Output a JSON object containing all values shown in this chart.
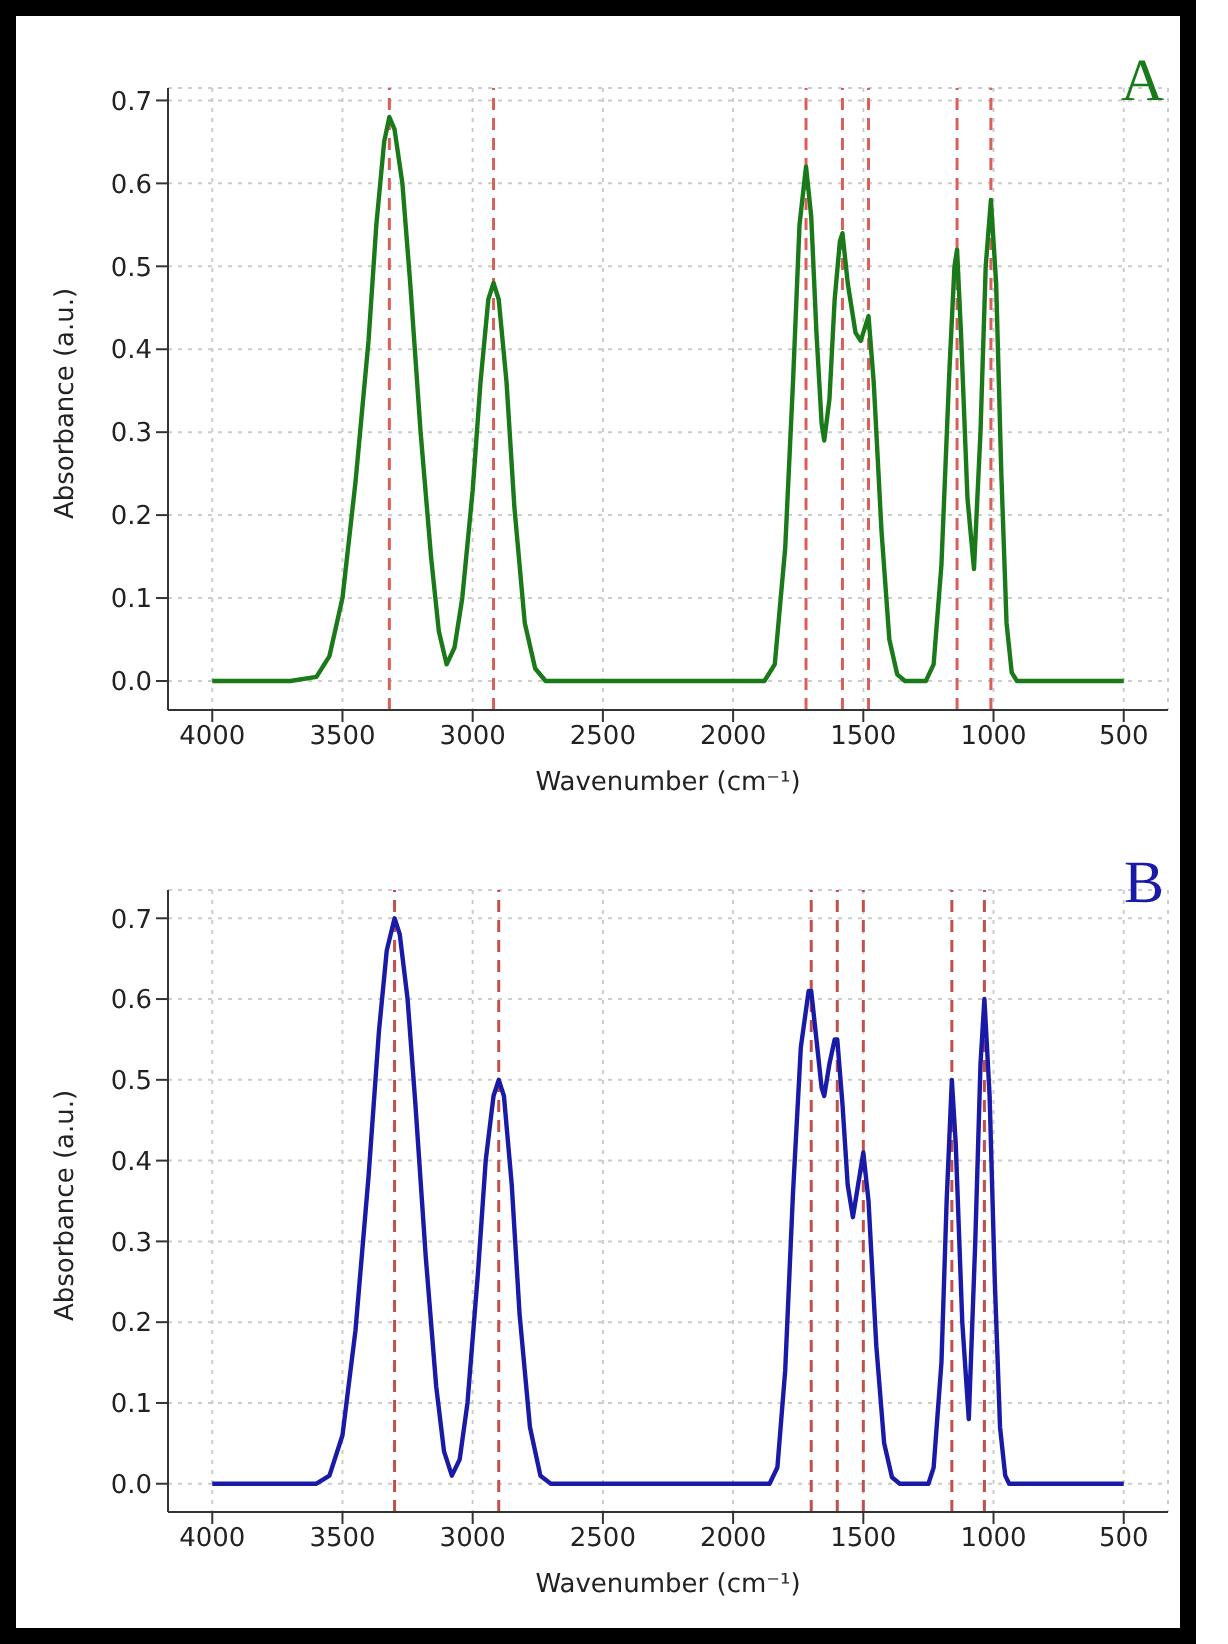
{
  "chart_data": [
    {
      "type": "line",
      "xlabel": "Wavenumber (cm⁻¹)",
      "ylabel": "Absorbance (a.u.)",
      "annotations": [
        "A"
      ],
      "xlim": [
        4170,
        330
      ],
      "xticks": [
        4000,
        3500,
        3000,
        2500,
        2000,
        1500,
        1000,
        500
      ],
      "ylim": [
        -0.035,
        0.715
      ],
      "yticks": [
        {
          "value": 0,
          "label": "0.0"
        },
        0.1,
        0.2,
        0.3,
        0.4,
        0.5,
        0.6,
        0.7
      ],
      "grid": true,
      "marker": "none",
      "line_style": "solid",
      "ref_lines": [
        {
          "axis": "x",
          "value": 3320,
          "color": "#d9605a",
          "line_style": "dashed"
        },
        {
          "axis": "x",
          "value": 2920,
          "color": "#d9605a",
          "line_style": "dashed"
        },
        {
          "axis": "x",
          "value": 1720,
          "color": "#d9605a",
          "line_style": "dashed"
        },
        {
          "axis": "x",
          "value": 1580,
          "color": "#d9605a",
          "line_style": "dashed"
        },
        {
          "axis": "x",
          "value": 1480,
          "color": "#d9605a",
          "line_style": "dashed"
        },
        {
          "axis": "x",
          "value": 1140,
          "color": "#d9605a",
          "line_style": "dashed"
        },
        {
          "axis": "x",
          "value": 1010,
          "color": "#d9605a",
          "line_style": "dashed"
        }
      ],
      "series": [
        {
          "color": "#1a7a1a",
          "x": [
            4000,
            3700,
            3600,
            3550,
            3500,
            3450,
            3400,
            3370,
            3340,
            3320,
            3300,
            3270,
            3240,
            3200,
            3160,
            3130,
            3100,
            3070,
            3040,
            3000,
            2970,
            2940,
            2920,
            2900,
            2870,
            2840,
            2800,
            2760,
            2720,
            1880,
            1840,
            1800,
            1770,
            1745,
            1720,
            1700,
            1680,
            1660,
            1650,
            1630,
            1610,
            1590,
            1580,
            1560,
            1530,
            1510,
            1480,
            1460,
            1430,
            1400,
            1370,
            1340,
            1260,
            1230,
            1200,
            1170,
            1150,
            1140,
            1125,
            1100,
            1075,
            1050,
            1030,
            1010,
            990,
            970,
            950,
            930,
            910,
            500
          ],
          "values": [
            0,
            0,
            0.005,
            0.03,
            0.1,
            0.24,
            0.41,
            0.55,
            0.65,
            0.68,
            0.665,
            0.6,
            0.48,
            0.3,
            0.15,
            0.06,
            0.02,
            0.04,
            0.1,
            0.23,
            0.36,
            0.46,
            0.48,
            0.46,
            0.36,
            0.21,
            0.07,
            0.015,
            0,
            0,
            0.02,
            0.16,
            0.36,
            0.55,
            0.62,
            0.56,
            0.42,
            0.31,
            0.29,
            0.34,
            0.46,
            0.53,
            0.54,
            0.48,
            0.42,
            0.41,
            0.44,
            0.36,
            0.18,
            0.05,
            0.008,
            0,
            0,
            0.02,
            0.14,
            0.37,
            0.5,
            0.52,
            0.42,
            0.22,
            0.135,
            0.3,
            0.5,
            0.58,
            0.48,
            0.25,
            0.07,
            0.01,
            0,
            0
          ]
        }
      ]
    },
    {
      "type": "line",
      "xlabel": "Wavenumber (cm⁻¹)",
      "ylabel": "Absorbance (a.u.)",
      "annotations": [
        "B"
      ],
      "xlim": [
        4170,
        330
      ],
      "xticks": [
        4000,
        3500,
        3000,
        2500,
        2000,
        1500,
        1000,
        500
      ],
      "ylim": [
        -0.035,
        0.735
      ],
      "yticks": [
        {
          "value": 0,
          "label": "0.0"
        },
        0.1,
        0.2,
        0.3,
        0.4,
        0.5,
        0.6,
        0.7
      ],
      "grid": true,
      "marker": "none",
      "line_style": "solid",
      "ref_lines": [
        {
          "axis": "x",
          "value": 3300,
          "color": "#c0504d",
          "line_style": "dashed"
        },
        {
          "axis": "x",
          "value": 2900,
          "color": "#c0504d",
          "line_style": "dashed"
        },
        {
          "axis": "x",
          "value": 1700,
          "color": "#c0504d",
          "line_style": "dashed"
        },
        {
          "axis": "x",
          "value": 1600,
          "color": "#c0504d",
          "line_style": "dashed"
        },
        {
          "axis": "x",
          "value": 1500,
          "color": "#c0504d",
          "line_style": "dashed"
        },
        {
          "axis": "x",
          "value": 1160,
          "color": "#c0504d",
          "line_style": "dashed"
        },
        {
          "axis": "x",
          "value": 1035,
          "color": "#c0504d",
          "line_style": "dashed"
        }
      ],
      "series": [
        {
          "color": "#1a1aa8",
          "x": [
            4000,
            3600,
            3550,
            3500,
            3450,
            3400,
            3360,
            3330,
            3300,
            3280,
            3250,
            3220,
            3180,
            3140,
            3110,
            3080,
            3050,
            3020,
            2980,
            2950,
            2920,
            2900,
            2880,
            2850,
            2820,
            2780,
            2740,
            2700,
            1860,
            1830,
            1800,
            1770,
            1740,
            1710,
            1700,
            1680,
            1660,
            1650,
            1630,
            1610,
            1600,
            1580,
            1560,
            1540,
            1520,
            1500,
            1480,
            1450,
            1420,
            1390,
            1360,
            1250,
            1230,
            1200,
            1180,
            1160,
            1145,
            1120,
            1095,
            1070,
            1050,
            1035,
            1015,
            995,
            975,
            955,
            940,
            500
          ],
          "values": [
            0,
            0,
            0.01,
            0.06,
            0.19,
            0.38,
            0.56,
            0.66,
            0.7,
            0.68,
            0.6,
            0.47,
            0.28,
            0.12,
            0.04,
            0.01,
            0.03,
            0.1,
            0.26,
            0.4,
            0.48,
            0.5,
            0.48,
            0.37,
            0.21,
            0.07,
            0.01,
            0,
            0,
            0.02,
            0.14,
            0.36,
            0.54,
            0.61,
            0.61,
            0.55,
            0.49,
            0.48,
            0.52,
            0.55,
            0.55,
            0.47,
            0.37,
            0.33,
            0.37,
            0.41,
            0.35,
            0.17,
            0.05,
            0.008,
            0,
            0,
            0.02,
            0.15,
            0.35,
            0.5,
            0.42,
            0.2,
            0.08,
            0.3,
            0.52,
            0.6,
            0.48,
            0.25,
            0.07,
            0.01,
            0,
            0
          ]
        }
      ]
    }
  ]
}
